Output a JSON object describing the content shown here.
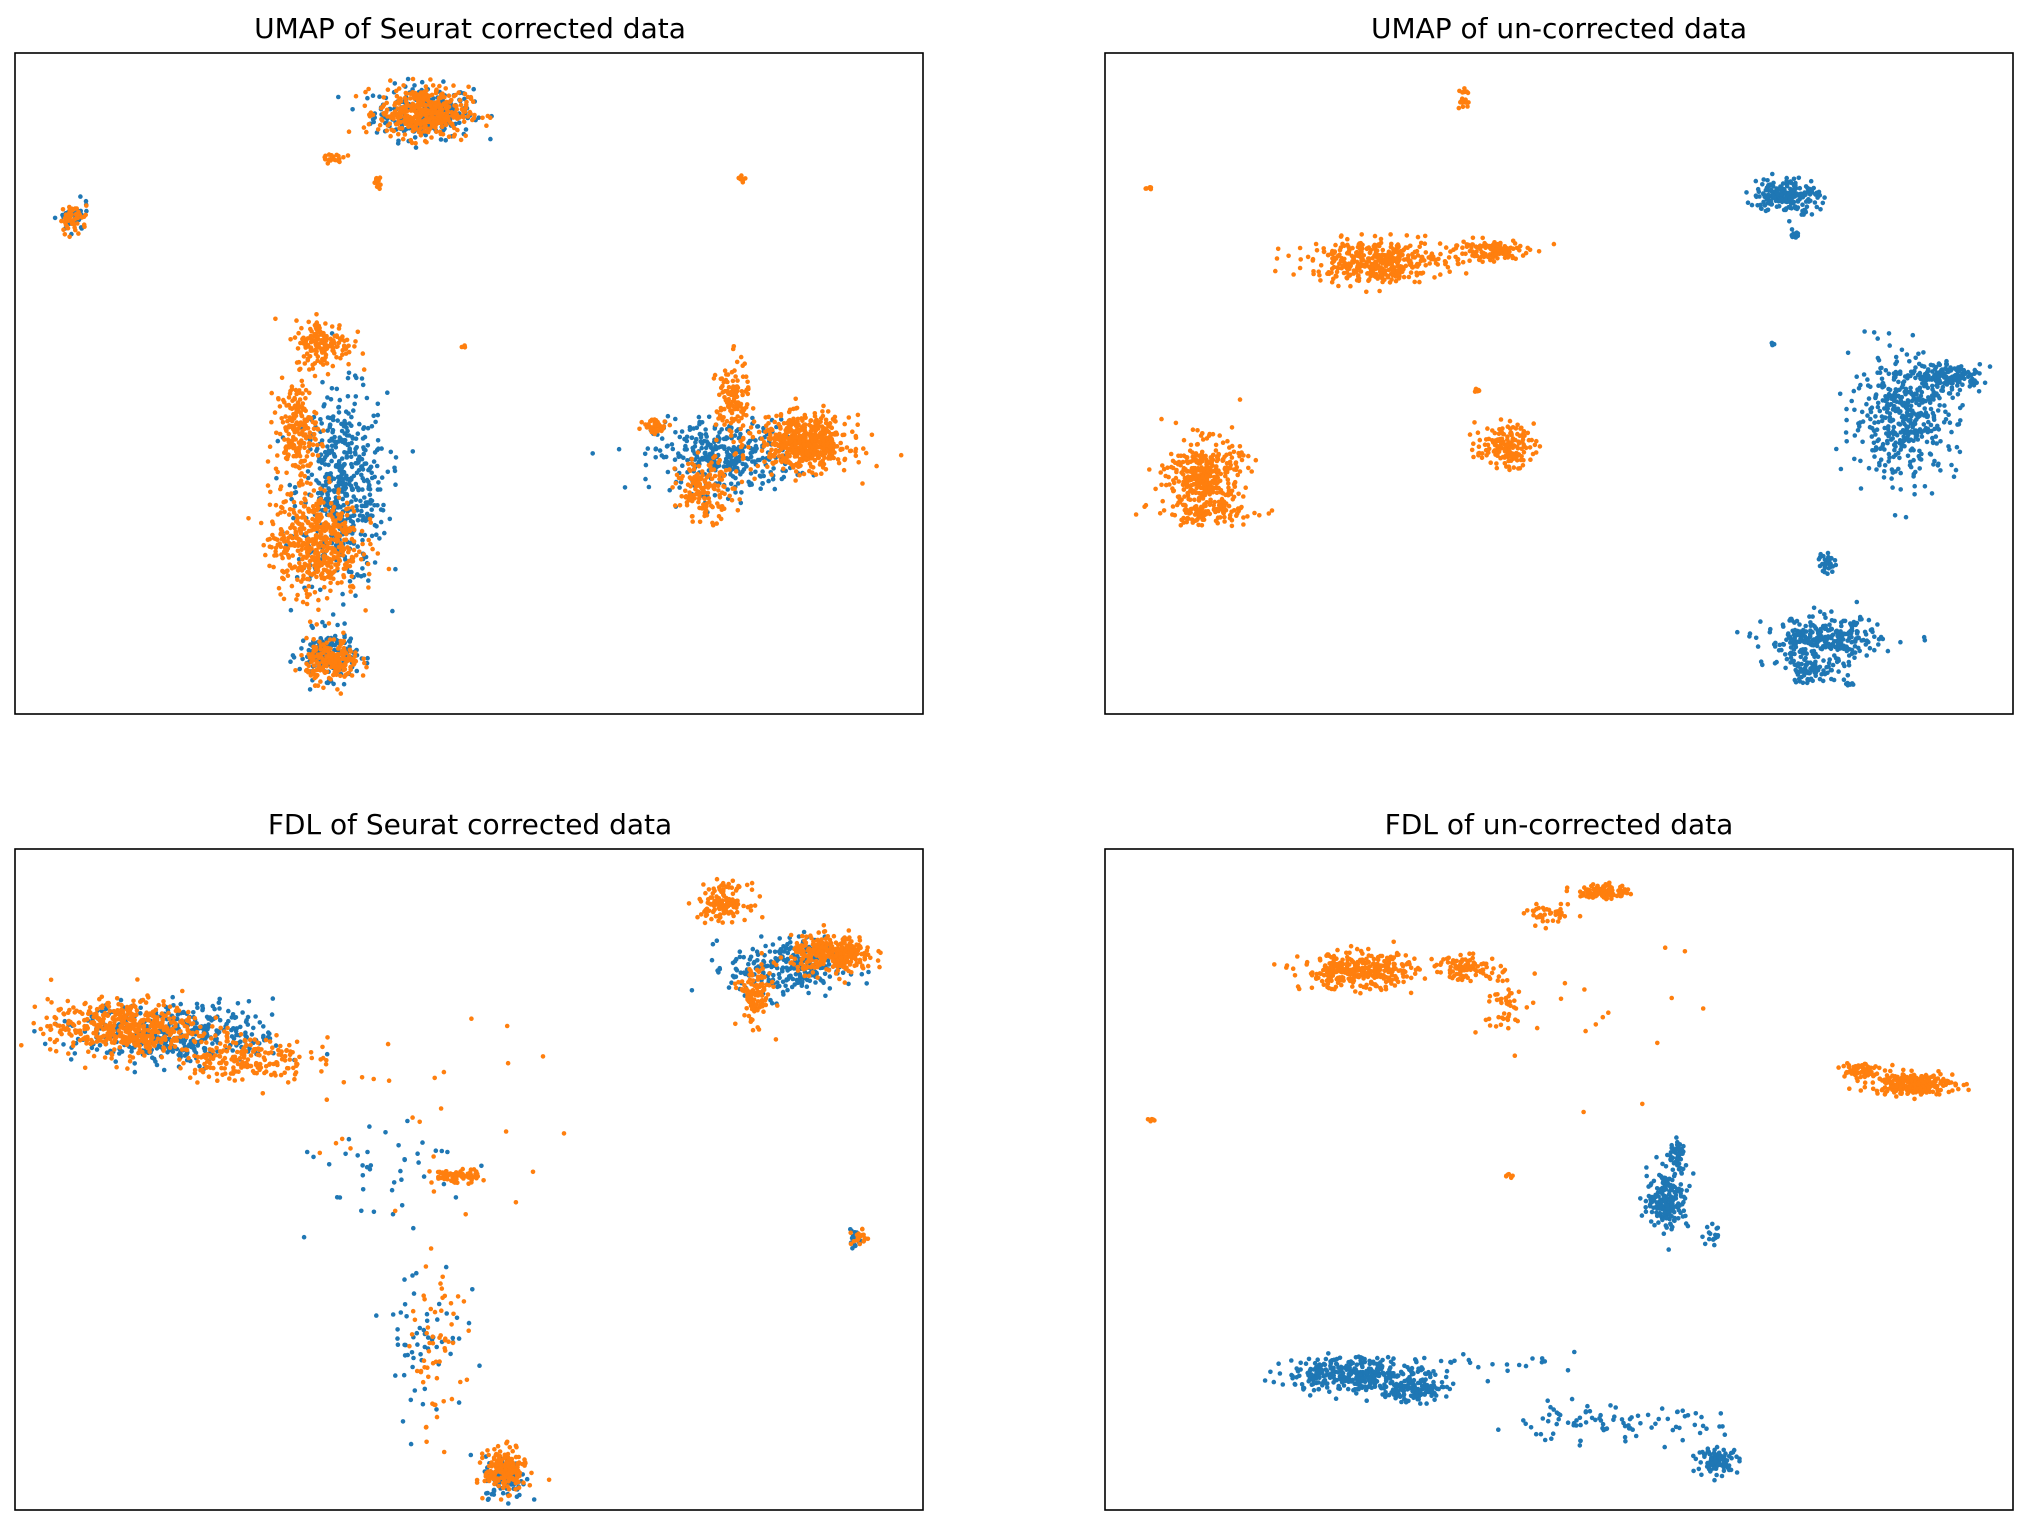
{
  "colors": {
    "batch_a": "#1f77b4",
    "batch_b": "#ff7f0e",
    "frame": "#000000",
    "background": "#ffffff"
  },
  "chart_data": [
    {
      "type": "scatter",
      "title": "UMAP of Seurat corrected data",
      "xlabel": "",
      "ylabel": "",
      "ticks": "none",
      "grid": false,
      "legend": "none",
      "xlim": [
        0,
        100
      ],
      "ylim": [
        0,
        100
      ],
      "series": [
        {
          "color": "#1f77b4",
          "clusters": [
            {
              "cx": 45,
              "cy": 91,
              "rx": 6.0,
              "ry": 4.5,
              "n": 260
            },
            {
              "cx": 36,
              "cy": 34,
              "rx": 5.5,
              "ry": 16,
              "n": 520
            },
            {
              "cx": 78,
              "cy": 39,
              "rx": 8.5,
              "ry": 6,
              "n": 340
            },
            {
              "cx": 34.5,
              "cy": 9,
              "rx": 3.5,
              "ry": 4,
              "n": 160
            },
            {
              "cx": 6.5,
              "cy": 75,
              "rx": 1.8,
              "ry": 2.5,
              "n": 40
            }
          ]
        },
        {
          "color": "#ff7f0e",
          "clusters": [
            {
              "cx": 45,
              "cy": 91,
              "rx": 5.5,
              "ry": 4.3,
              "n": 420
            },
            {
              "cx": 34,
              "cy": 56,
              "rx": 3.5,
              "ry": 4,
              "n": 160
            },
            {
              "cx": 31,
              "cy": 43,
              "rx": 2.5,
              "ry": 8,
              "n": 200
            },
            {
              "cx": 33,
              "cy": 26,
              "rx": 5.5,
              "ry": 9,
              "n": 520
            },
            {
              "cx": 35,
              "cy": 8,
              "rx": 3.2,
              "ry": 3.5,
              "n": 200
            },
            {
              "cx": 87,
              "cy": 41,
              "rx": 5.5,
              "ry": 4.5,
              "n": 560
            },
            {
              "cx": 79,
              "cy": 47,
              "rx": 2,
              "ry": 7,
              "n": 130
            },
            {
              "cx": 76,
              "cy": 34,
              "rx": 3.5,
              "ry": 5,
              "n": 160
            },
            {
              "cx": 70.5,
              "cy": 43.5,
              "rx": 1.5,
              "ry": 1.2,
              "n": 40
            },
            {
              "cx": 6.5,
              "cy": 75,
              "rx": 1.7,
              "ry": 2.3,
              "n": 50
            },
            {
              "cx": 35,
              "cy": 84,
              "rx": 1.5,
              "ry": 0.8,
              "n": 20
            },
            {
              "cx": 40,
              "cy": 80.5,
              "rx": 0.5,
              "ry": 1,
              "n": 14
            },
            {
              "cx": 80,
              "cy": 81,
              "rx": 0.5,
              "ry": 0.5,
              "n": 10
            },
            {
              "cx": 49.5,
              "cy": 55.5,
              "rx": 0.3,
              "ry": 0.3,
              "n": 4
            }
          ]
        }
      ]
    },
    {
      "type": "scatter",
      "title": "UMAP of un-corrected data",
      "xlabel": "",
      "ylabel": "",
      "ticks": "none",
      "grid": false,
      "legend": "none",
      "xlim": [
        0,
        100
      ],
      "ylim": [
        0,
        100
      ],
      "series": [
        {
          "color": "#1f77b4",
          "clusters": [
            {
              "cx": 75,
              "cy": 78.5,
              "rx": 4,
              "ry": 3,
              "n": 200
            },
            {
              "cx": 76,
              "cy": 72.5,
              "rx": 0.6,
              "ry": 0.6,
              "n": 12
            },
            {
              "cx": 88,
              "cy": 45,
              "rx": 6.5,
              "ry": 10,
              "n": 460
            },
            {
              "cx": 93,
              "cy": 51,
              "rx": 4,
              "ry": 2,
              "n": 150
            },
            {
              "cx": 79,
              "cy": 11,
              "rx": 7,
              "ry": 4,
              "n": 300
            },
            {
              "cx": 78,
              "cy": 6.5,
              "rx": 4,
              "ry": 2,
              "n": 80
            },
            {
              "cx": 79.5,
              "cy": 23,
              "rx": 1,
              "ry": 1.8,
              "n": 30
            },
            {
              "cx": 82,
              "cy": 4.5,
              "rx": 0.4,
              "ry": 0.4,
              "n": 6
            },
            {
              "cx": 73.5,
              "cy": 56,
              "rx": 0.3,
              "ry": 0.3,
              "n": 4
            }
          ]
        },
        {
          "color": "#ff7f0e",
          "clusters": [
            {
              "cx": 30,
              "cy": 68.5,
              "rx": 8,
              "ry": 3.5,
              "n": 420
            },
            {
              "cx": 42,
              "cy": 70,
              "rx": 5,
              "ry": 2,
              "n": 120
            },
            {
              "cx": 11,
              "cy": 36,
              "rx": 4.5,
              "ry": 6,
              "n": 380
            },
            {
              "cx": 11,
              "cy": 30.5,
              "rx": 6,
              "ry": 1.8,
              "n": 100
            },
            {
              "cx": 44,
              "cy": 40.5,
              "rx": 3.5,
              "ry": 3.5,
              "n": 160
            },
            {
              "cx": 41,
              "cy": 49,
              "rx": 0.4,
              "ry": 0.4,
              "n": 6
            },
            {
              "cx": 39.5,
              "cy": 93,
              "rx": 0.6,
              "ry": 2.5,
              "n": 20
            },
            {
              "cx": 5,
              "cy": 79.5,
              "rx": 0.5,
              "ry": 0.4,
              "n": 6
            }
          ]
        }
      ]
    },
    {
      "type": "scatter",
      "title": "FDL of Seurat corrected data",
      "xlabel": "",
      "ylabel": "",
      "ticks": "none",
      "grid": false,
      "legend": "none",
      "xlim": [
        0,
        100
      ],
      "ylim": [
        0,
        100
      ],
      "series": [
        {
          "color": "#1f77b4",
          "clusters": [
            {
              "cx": 18,
              "cy": 72,
              "rx": 12,
              "ry": 5,
              "n": 420
            },
            {
              "cx": 85,
              "cy": 82,
              "rx": 7,
              "ry": 5,
              "n": 260
            },
            {
              "cx": 54,
              "cy": 5,
              "rx": 2.5,
              "ry": 3.5,
              "n": 120
            },
            {
              "cx": 45,
              "cy": 27,
              "rx": 5,
              "ry": 14,
              "n": 60
            },
            {
              "cx": 92.5,
              "cy": 41,
              "rx": 0.8,
              "ry": 1.5,
              "n": 20
            },
            {
              "cx": 40,
              "cy": 52,
              "rx": 12,
              "ry": 10,
              "n": 40
            }
          ]
        },
        {
          "color": "#ff7f0e",
          "clusters": [
            {
              "cx": 12,
              "cy": 73,
              "rx": 9,
              "ry": 4.5,
              "n": 500
            },
            {
              "cx": 25,
              "cy": 68.5,
              "rx": 8,
              "ry": 4,
              "n": 200
            },
            {
              "cx": 90,
              "cy": 84,
              "rx": 5,
              "ry": 3,
              "n": 340
            },
            {
              "cx": 78,
              "cy": 92,
              "rx": 3,
              "ry": 3,
              "n": 140
            },
            {
              "cx": 81.5,
              "cy": 78,
              "rx": 2,
              "ry": 5,
              "n": 120
            },
            {
              "cx": 54,
              "cy": 6,
              "rx": 2.5,
              "ry": 3.5,
              "n": 200
            },
            {
              "cx": 48.5,
              "cy": 50.5,
              "rx": 3,
              "ry": 1.2,
              "n": 70
            },
            {
              "cx": 46.5,
              "cy": 24,
              "rx": 3,
              "ry": 14,
              "n": 60
            },
            {
              "cx": 93,
              "cy": 41,
              "rx": 1,
              "ry": 1.5,
              "n": 20
            },
            {
              "cx": 45,
              "cy": 60,
              "rx": 20,
              "ry": 15,
              "n": 30
            }
          ]
        }
      ]
    },
    {
      "type": "scatter",
      "title": "FDL of un-corrected data",
      "xlabel": "",
      "ylabel": "",
      "ticks": "none",
      "grid": false,
      "legend": "none",
      "xlim": [
        0,
        100
      ],
      "ylim": [
        0,
        100
      ],
      "series": [
        {
          "color": "#1f77b4",
          "clusters": [
            {
              "cx": 28,
              "cy": 20.5,
              "rx": 9,
              "ry": 3,
              "n": 380
            },
            {
              "cx": 34,
              "cy": 18,
              "rx": 4,
              "ry": 1.8,
              "n": 120
            },
            {
              "cx": 55,
              "cy": 13,
              "rx": 14,
              "ry": 3,
              "n": 90
            },
            {
              "cx": 67.5,
              "cy": 7.5,
              "rx": 2.5,
              "ry": 2,
              "n": 100
            },
            {
              "cx": 62,
              "cy": 47,
              "rx": 2.5,
              "ry": 5,
              "n": 200
            },
            {
              "cx": 63,
              "cy": 53.5,
              "rx": 1,
              "ry": 3,
              "n": 50
            },
            {
              "cx": 67,
              "cy": 41.5,
              "rx": 1.5,
              "ry": 1.5,
              "n": 16
            },
            {
              "cx": 45,
              "cy": 22,
              "rx": 8,
              "ry": 2,
              "n": 20
            }
          ]
        },
        {
          "color": "#ff7f0e",
          "clusters": [
            {
              "cx": 28,
              "cy": 81.5,
              "rx": 7,
              "ry": 3,
              "n": 340
            },
            {
              "cx": 40,
              "cy": 82,
              "rx": 4,
              "ry": 2,
              "n": 100
            },
            {
              "cx": 55,
              "cy": 93.5,
              "rx": 3,
              "ry": 1.2,
              "n": 120
            },
            {
              "cx": 49,
              "cy": 90,
              "rx": 3,
              "ry": 1.5,
              "n": 40
            },
            {
              "cx": 89,
              "cy": 64.5,
              "rx": 5,
              "ry": 1.8,
              "n": 260
            },
            {
              "cx": 83,
              "cy": 66.5,
              "rx": 2.5,
              "ry": 1.5,
              "n": 70
            },
            {
              "cx": 44,
              "cy": 76,
              "rx": 2.5,
              "ry": 4,
              "n": 40
            },
            {
              "cx": 5,
              "cy": 59,
              "rx": 0.5,
              "ry": 0.4,
              "n": 6
            },
            {
              "cx": 44.5,
              "cy": 50.5,
              "rx": 0.4,
              "ry": 0.5,
              "n": 6
            },
            {
              "cx": 55,
              "cy": 75,
              "rx": 15,
              "ry": 12,
              "n": 20
            }
          ]
        }
      ]
    }
  ]
}
